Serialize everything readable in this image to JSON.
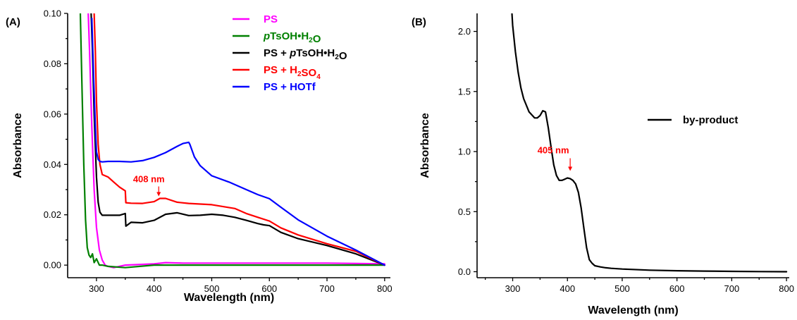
{
  "chart_data": [
    {
      "type": "line",
      "panel_label": "(A)",
      "xlabel": "Wavelength (nm)",
      "ylabel": "Absorbance",
      "xlim": [
        250,
        810
      ],
      "ylim": [
        -0.005,
        0.1
      ],
      "xticks": [
        300,
        400,
        500,
        600,
        700,
        800
      ],
      "yticks": [
        0.0,
        0.02,
        0.04,
        0.06,
        0.08,
        0.1
      ],
      "ytick_labels": [
        "0.00",
        "0.02",
        "0.04",
        "0.06",
        "0.08",
        "0.10"
      ],
      "legend_placement": "top-right",
      "legend": [
        {
          "parts": [
            {
              "t": "PS"
            }
          ],
          "color": "#ff00ff"
        },
        {
          "parts": [
            {
              "t": "p",
              "style": "italic"
            },
            {
              "t": "TsOH•H"
            },
            {
              "t": "2",
              "style": "sub"
            },
            {
              "t": "O"
            }
          ],
          "color": "#008000"
        },
        {
          "parts": [
            {
              "t": "PS + "
            },
            {
              "t": "p",
              "style": "italic"
            },
            {
              "t": "TsOH•H"
            },
            {
              "t": "2",
              "style": "sub"
            },
            {
              "t": "O"
            }
          ],
          "color": "#000000"
        },
        {
          "parts": [
            {
              "t": "PS + H"
            },
            {
              "t": "2",
              "style": "sub"
            },
            {
              "t": "SO"
            },
            {
              "t": "4",
              "style": "sub"
            }
          ],
          "color": "#ff0000"
        },
        {
          "parts": [
            {
              "t": "PS + HOTf"
            }
          ],
          "color": "#0000ff"
        }
      ],
      "series": [
        {
          "color": "#ff00ff",
          "x": [
            285,
            288,
            292,
            296,
            300,
            305,
            310,
            315,
            320,
            330,
            350,
            400,
            420,
            450,
            500,
            600,
            700,
            800
          ],
          "y": [
            0.105,
            0.085,
            0.055,
            0.03,
            0.015,
            0.006,
            0.002,
            0.0,
            -0.0005,
            -0.001,
            0.0,
            0.0005,
            0.001,
            0.0008,
            0.0008,
            0.0008,
            0.0008,
            0.0005
          ]
        },
        {
          "color": "#008000",
          "x": [
            272,
            275,
            278,
            281,
            284,
            287,
            290,
            293,
            296,
            300,
            305,
            310,
            320,
            350,
            400,
            450,
            500,
            600,
            700,
            800
          ],
          "y": [
            0.1,
            0.07,
            0.04,
            0.018,
            0.007,
            0.004,
            0.003,
            0.0045,
            0.001,
            0.0025,
            0.0,
            0.0,
            -0.0005,
            -0.001,
            0.0,
            0.0,
            0.0,
            0.0,
            0.0,
            0.0
          ]
        },
        {
          "color": "#000000",
          "x": [
            290,
            293,
            296,
            300,
            303,
            306,
            310,
            320,
            340,
            350,
            351,
            360,
            380,
            400,
            420,
            440,
            460,
            480,
            500,
            520,
            540,
            560,
            580,
            590,
            600,
            620,
            650,
            700,
            750,
            800
          ],
          "y": [
            0.105,
            0.085,
            0.06,
            0.035,
            0.025,
            0.021,
            0.0198,
            0.0198,
            0.0198,
            0.0205,
            0.0155,
            0.017,
            0.0168,
            0.0178,
            0.0202,
            0.0208,
            0.0197,
            0.0198,
            0.0202,
            0.0198,
            0.019,
            0.0178,
            0.0165,
            0.016,
            0.0157,
            0.013,
            0.0105,
            0.0078,
            0.0045,
            0.0
          ]
        },
        {
          "color": "#ff0000",
          "x": [
            296,
            298,
            300,
            303,
            306,
            310,
            320,
            330,
            340,
            350,
            351,
            360,
            380,
            400,
            410,
            420,
            440,
            460,
            500,
            540,
            560,
            580,
            600,
            620,
            650,
            700,
            750,
            800
          ],
          "y": [
            0.1,
            0.085,
            0.065,
            0.048,
            0.04,
            0.036,
            0.035,
            0.033,
            0.031,
            0.0295,
            0.0248,
            0.0246,
            0.0245,
            0.0252,
            0.0265,
            0.0265,
            0.025,
            0.0245,
            0.024,
            0.0225,
            0.0205,
            0.019,
            0.0175,
            0.0148,
            0.012,
            0.0085,
            0.0055,
            0.0
          ]
        },
        {
          "color": "#0000ff",
          "x": [
            292,
            295,
            298,
            300,
            303,
            306,
            310,
            320,
            340,
            360,
            380,
            400,
            420,
            440,
            450,
            460,
            462,
            470,
            480,
            500,
            530,
            560,
            580,
            600,
            620,
            650,
            700,
            750,
            800
          ],
          "y": [
            0.098,
            0.075,
            0.055,
            0.045,
            0.042,
            0.0412,
            0.041,
            0.0412,
            0.0412,
            0.041,
            0.0415,
            0.0428,
            0.0447,
            0.0472,
            0.0483,
            0.0488,
            0.048,
            0.043,
            0.0395,
            0.0355,
            0.033,
            0.03,
            0.028,
            0.0264,
            0.023,
            0.018,
            0.0115,
            0.006,
            0.0
          ]
        }
      ],
      "annotations": [
        {
          "text": "408 nm",
          "color": "#ff0000",
          "x": 408,
          "y": 0.0265
        }
      ]
    },
    {
      "type": "line",
      "panel_label": "(B)",
      "xlabel": "Wavelength (nm)",
      "ylabel": "Absorbance",
      "xlim": [
        235,
        805
      ],
      "ylim": [
        -0.05,
        2.15
      ],
      "xticks": [
        300,
        400,
        500,
        600,
        700,
        800
      ],
      "yticks": [
        0.0,
        0.5,
        1.0,
        1.5,
        2.0
      ],
      "ytick_labels": [
        "0.0",
        "0.5",
        "1.0",
        "1.5",
        "2.0"
      ],
      "legend_placement": "right",
      "legend": [
        {
          "parts": [
            {
              "t": "by-product"
            }
          ],
          "color": "#000000"
        }
      ],
      "series": [
        {
          "color": "#000000",
          "x": [
            298,
            300,
            305,
            310,
            315,
            320,
            330,
            340,
            345,
            350,
            355,
            360,
            365,
            370,
            375,
            380,
            385,
            390,
            395,
            400,
            405,
            410,
            415,
            420,
            425,
            430,
            435,
            440,
            445,
            450,
            460,
            470,
            480,
            500,
            550,
            600,
            650,
            700,
            750,
            800
          ],
          "y": [
            2.2,
            2.05,
            1.83,
            1.66,
            1.53,
            1.44,
            1.33,
            1.28,
            1.28,
            1.3,
            1.34,
            1.33,
            1.2,
            1.04,
            0.89,
            0.8,
            0.76,
            0.76,
            0.77,
            0.78,
            0.775,
            0.76,
            0.73,
            0.66,
            0.53,
            0.36,
            0.2,
            0.1,
            0.07,
            0.05,
            0.04,
            0.033,
            0.028,
            0.022,
            0.013,
            0.008,
            0.005,
            0.003,
            0.001,
            0.0
          ]
        }
      ],
      "annotations": [
        {
          "text": "405 nm",
          "color": "#ff0000",
          "x": 405,
          "y": 0.78
        }
      ]
    }
  ]
}
